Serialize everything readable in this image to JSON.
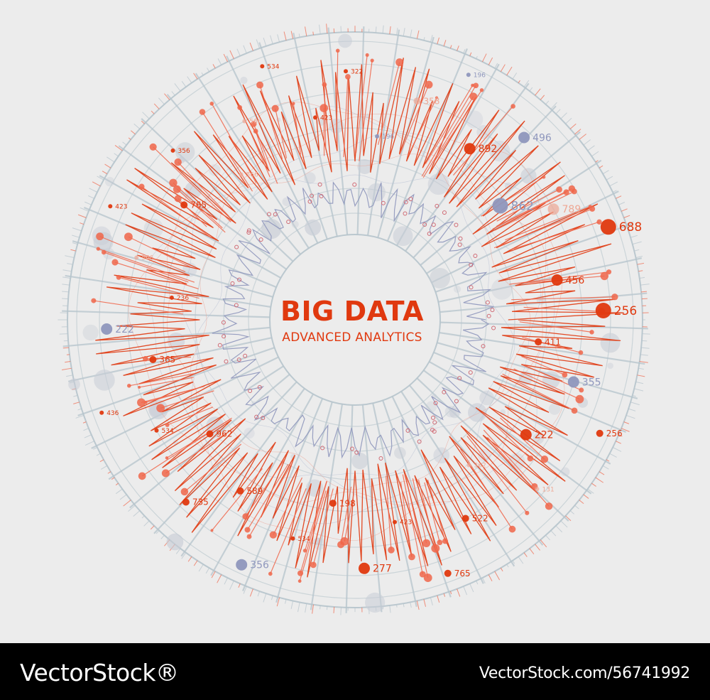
{
  "colors": {
    "background": "#ececec",
    "accent": "#e0390f",
    "accent_light": "#f0664a",
    "secondary": "#8f97bd",
    "grid": "#b6c4cc",
    "footer": "#000000"
  },
  "center": {
    "title": "BIG DATA",
    "subtitle": "ADVANCED ANALYTICS"
  },
  "labels": [
    {
      "text": "196",
      "tone": "blue",
      "weight": 1
    },
    {
      "text": "358",
      "tone": "pale",
      "weight": 2
    },
    {
      "text": "196",
      "tone": "blue",
      "weight": 1
    },
    {
      "text": "892",
      "tone": "red",
      "weight": 3
    },
    {
      "text": "496",
      "tone": "blue",
      "weight": 3
    },
    {
      "text": "862",
      "tone": "blue",
      "weight": 4
    },
    {
      "text": "789",
      "tone": "pale",
      "weight": 3
    },
    {
      "text": "688",
      "tone": "red",
      "weight": 4
    },
    {
      "text": "456",
      "tone": "red",
      "weight": 3
    },
    {
      "text": "256",
      "tone": "red",
      "weight": 4
    },
    {
      "text": "411",
      "tone": "red",
      "weight": 2
    },
    {
      "text": "355",
      "tone": "blue",
      "weight": 3
    },
    {
      "text": "256",
      "tone": "red",
      "weight": 2
    },
    {
      "text": "222",
      "tone": "red",
      "weight": 3
    },
    {
      "text": "131",
      "tone": "pale",
      "weight": 1
    },
    {
      "text": "362",
      "tone": "pale",
      "weight": 1
    },
    {
      "text": "522",
      "tone": "red",
      "weight": 2
    },
    {
      "text": "765",
      "tone": "red",
      "weight": 2
    },
    {
      "text": "423",
      "tone": "red",
      "weight": 1
    },
    {
      "text": "277",
      "tone": "red",
      "weight": 3
    },
    {
      "text": "198",
      "tone": "red",
      "weight": 2
    },
    {
      "text": "534",
      "tone": "red",
      "weight": 1
    },
    {
      "text": "356",
      "tone": "blue",
      "weight": 3
    },
    {
      "text": "589",
      "tone": "red",
      "weight": 2
    },
    {
      "text": "735",
      "tone": "red",
      "weight": 2
    },
    {
      "text": "962",
      "tone": "red",
      "weight": 2
    },
    {
      "text": "534",
      "tone": "red",
      "weight": 1
    },
    {
      "text": "436",
      "tone": "red",
      "weight": 1
    },
    {
      "text": "365",
      "tone": "red",
      "weight": 2
    },
    {
      "text": "222",
      "tone": "blue",
      "weight": 3
    },
    {
      "text": "236",
      "tone": "red",
      "weight": 1
    },
    {
      "text": "566",
      "tone": "pale",
      "weight": 1
    },
    {
      "text": "423",
      "tone": "red",
      "weight": 1
    },
    {
      "text": "765",
      "tone": "red",
      "weight": 2
    },
    {
      "text": "356",
      "tone": "red",
      "weight": 1
    },
    {
      "text": "566",
      "tone": "pale",
      "weight": 1
    },
    {
      "text": "566",
      "tone": "pale",
      "weight": 1
    },
    {
      "text": "534",
      "tone": "red",
      "weight": 1
    },
    {
      "text": "423",
      "tone": "red",
      "weight": 1
    },
    {
      "text": "322",
      "tone": "red",
      "weight": 1
    }
  ],
  "footer": {
    "brand": "VectorStock®",
    "image_id": "VectorStock.com/56741992"
  }
}
